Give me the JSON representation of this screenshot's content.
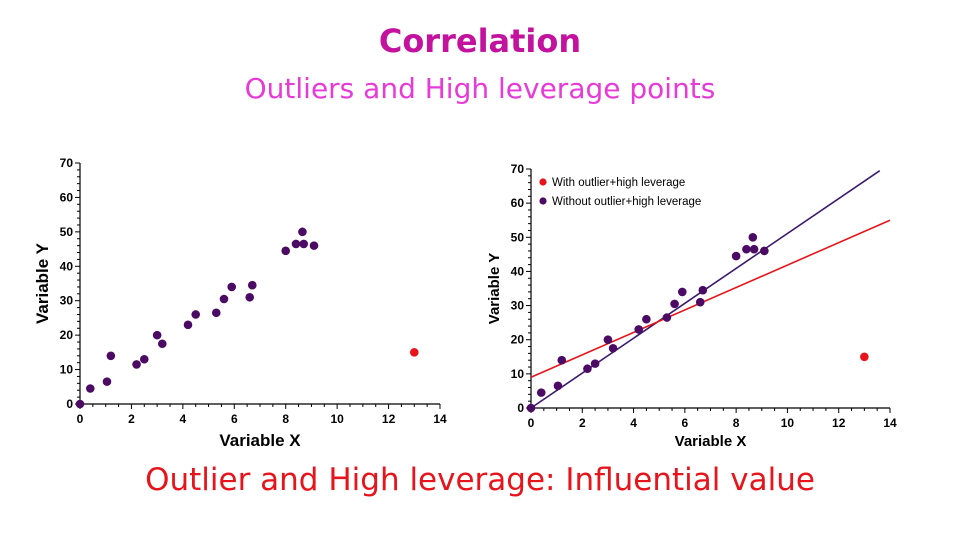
{
  "header": {
    "title": "Correlation",
    "subtitle": "Outliers and High leverage points",
    "title_color": "#c3139e",
    "subtitle_color": "#e83ad8"
  },
  "caption": {
    "text": "Outlier and High leverage: Influential value",
    "color": "#e8141c"
  },
  "chart_data": [
    {
      "type": "scatter",
      "title": "",
      "xlabel": "Variable X",
      "ylabel": "Variable Y",
      "xlim": [
        0,
        14
      ],
      "ylim": [
        0,
        70
      ],
      "xticks": [
        0,
        2,
        4,
        6,
        8,
        10,
        12,
        14
      ],
      "yticks": [
        0,
        10,
        20,
        30,
        40,
        50,
        60,
        70
      ],
      "series": [
        {
          "name": "Without outlier+high leverage",
          "color": "#4b0a63",
          "points": [
            [
              0,
              0
            ],
            [
              0.4,
              4.5
            ],
            [
              1.05,
              6.5
            ],
            [
              1.2,
              14
            ],
            [
              2.2,
              11.5
            ],
            [
              2.5,
              13
            ],
            [
              3.0,
              20
            ],
            [
              3.2,
              17.5
            ],
            [
              4.2,
              23
            ],
            [
              4.5,
              26
            ],
            [
              5.3,
              26.5
            ],
            [
              5.6,
              30.5
            ],
            [
              5.9,
              34
            ],
            [
              6.6,
              31
            ],
            [
              6.7,
              34.5
            ],
            [
              8.0,
              44.5
            ],
            [
              8.4,
              46.5
            ],
            [
              8.7,
              46.5
            ],
            [
              8.65,
              50
            ],
            [
              9.1,
              46
            ]
          ]
        },
        {
          "name": "With outlier+high leverage",
          "color": "#e8141c",
          "points": [
            [
              13,
              15
            ]
          ]
        }
      ],
      "grid": false,
      "legend": "none"
    },
    {
      "type": "scatter",
      "title": "",
      "xlabel": "Variable X",
      "ylabel": "Variable Y",
      "xlim": [
        0,
        14
      ],
      "ylim": [
        0,
        70
      ],
      "xticks": [
        0,
        2,
        4,
        6,
        8,
        10,
        12,
        14
      ],
      "yticks": [
        0,
        10,
        20,
        30,
        40,
        50,
        60,
        70
      ],
      "series": [
        {
          "name": "Without outlier+high leverage",
          "color": "#4b0a63",
          "points": [
            [
              0,
              0
            ],
            [
              0.4,
              4.5
            ],
            [
              1.05,
              6.5
            ],
            [
              1.2,
              14
            ],
            [
              2.2,
              11.5
            ],
            [
              2.5,
              13
            ],
            [
              3.0,
              20
            ],
            [
              3.2,
              17.5
            ],
            [
              4.2,
              23
            ],
            [
              4.5,
              26
            ],
            [
              5.3,
              26.5
            ],
            [
              5.6,
              30.5
            ],
            [
              5.9,
              34
            ],
            [
              6.6,
              31
            ],
            [
              6.7,
              34.5
            ],
            [
              8.0,
              44.5
            ],
            [
              8.4,
              46.5
            ],
            [
              8.7,
              46.5
            ],
            [
              8.65,
              50
            ],
            [
              9.1,
              46
            ]
          ]
        },
        {
          "name": "With outlier+high leverage",
          "color": "#e8141c",
          "points": [
            [
              13,
              15
            ]
          ]
        }
      ],
      "fit_lines": [
        {
          "name": "Without outlier+high leverage",
          "color": "#3a1a6e",
          "x": [
            0,
            13.6
          ],
          "y": [
            0,
            69.5
          ]
        },
        {
          "name": "With outlier+high leverage",
          "color": "#e8141c",
          "x": [
            0,
            14
          ],
          "y": [
            9,
            55
          ]
        }
      ],
      "legend": "top-left",
      "legend_entries": [
        {
          "label": "With outlier+high leverage",
          "color": "#e8141c"
        },
        {
          "label": "Without outlier+high leverage",
          "color": "#4b0a63"
        }
      ],
      "grid": false
    }
  ]
}
